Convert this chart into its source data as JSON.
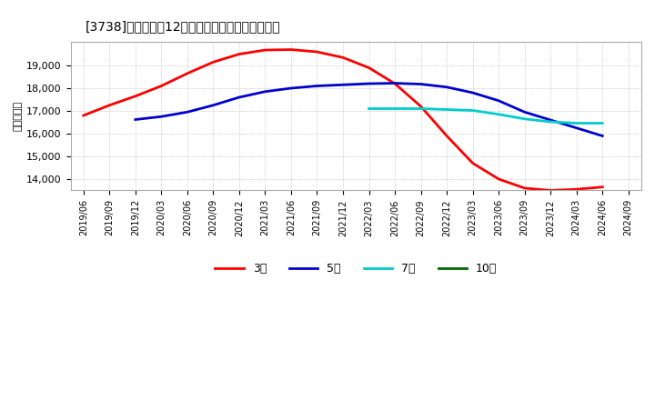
{
  "title": "[3738]　経常利益12か月移動合計の平均値の推移",
  "ylabel": "（百万円）",
  "background_color": "#ffffff",
  "plot_bg_color": "#ffffff",
  "grid_color": "#999999",
  "series": {
    "3年": {
      "color": "#ff0000",
      "dates": [
        "2019/06",
        "2019/09",
        "2019/12",
        "2020/03",
        "2020/06",
        "2020/09",
        "2020/12",
        "2021/03",
        "2021/06",
        "2021/09",
        "2021/12",
        "2022/03",
        "2022/06",
        "2022/09",
        "2022/12",
        "2023/03",
        "2023/06",
        "2023/09",
        "2023/12",
        "2024/03",
        "2024/06"
      ],
      "values": [
        16800,
        17250,
        17650,
        18100,
        18650,
        19150,
        19500,
        19680,
        19700,
        19600,
        19350,
        18900,
        18200,
        17200,
        15900,
        14700,
        14000,
        13600,
        13500,
        13550,
        13650
      ]
    },
    "5年": {
      "color": "#0000cc",
      "dates": [
        "2019/12",
        "2020/03",
        "2020/06",
        "2020/09",
        "2020/12",
        "2021/03",
        "2021/06",
        "2021/09",
        "2021/12",
        "2022/03",
        "2022/06",
        "2022/09",
        "2022/12",
        "2023/03",
        "2023/06",
        "2023/09",
        "2023/12",
        "2024/03",
        "2024/06"
      ],
      "values": [
        16620,
        16750,
        16950,
        17250,
        17600,
        17850,
        18000,
        18100,
        18150,
        18200,
        18220,
        18180,
        18050,
        17800,
        17450,
        16950,
        16600,
        16250,
        15900
      ]
    },
    "7年": {
      "color": "#00cccc",
      "dates": [
        "2022/03",
        "2022/06",
        "2022/09",
        "2022/12",
        "2023/03",
        "2023/06",
        "2023/09",
        "2023/12",
        "2024/03",
        "2024/06"
      ],
      "values": [
        17100,
        17100,
        17100,
        17060,
        17020,
        16850,
        16650,
        16520,
        16460,
        16460
      ]
    },
    "10年": {
      "color": "#006600",
      "dates": [],
      "values": []
    }
  },
  "ylim": [
    13500,
    20050
  ],
  "yticks": [
    14000,
    15000,
    16000,
    17000,
    18000,
    19000
  ],
  "xticks": [
    "2019/06",
    "2019/09",
    "2019/12",
    "2020/03",
    "2020/06",
    "2020/09",
    "2020/12",
    "2021/03",
    "2021/06",
    "2021/09",
    "2021/12",
    "2022/03",
    "2022/06",
    "2022/09",
    "2022/12",
    "2023/03",
    "2023/06",
    "2023/09",
    "2023/12",
    "2024/03",
    "2024/06",
    "2024/09"
  ],
  "legend_labels": [
    "3年",
    "5年",
    "7年",
    "10年"
  ],
  "legend_colors": [
    "#ff0000",
    "#0000cc",
    "#00cccc",
    "#006600"
  ]
}
